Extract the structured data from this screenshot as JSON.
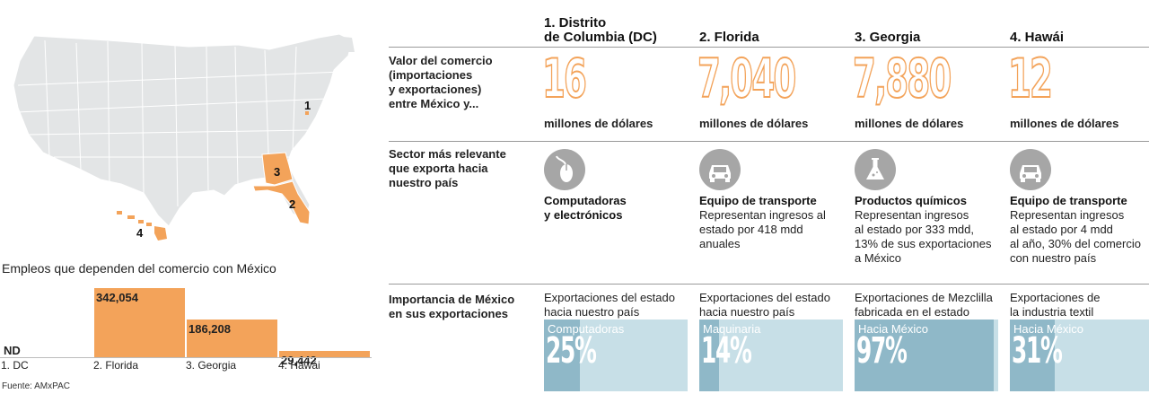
{
  "map": {
    "markers": [
      "1",
      "3",
      "2",
      "4"
    ],
    "highlight_color": "#f3a35a",
    "base_color": "#e3e5e6"
  },
  "chart_data": {
    "type": "bar",
    "title": "Empleos que dependen del comercio con México",
    "categories": [
      "1. DC",
      "2. Florida",
      "3. Georgia",
      "4. Hawái"
    ],
    "values": [
      null,
      342054,
      186208,
      29442
    ],
    "value_labels": [
      "ND",
      "342,054",
      "186,208",
      "29,442"
    ],
    "ylim": [
      0,
      342054
    ],
    "color": "#f3a35a"
  },
  "source": "Fuente: AMxPAC",
  "table": {
    "columns": [
      "1. Distrito\nde Columbia (DC)",
      "2. Florida",
      "3. Georgia",
      "4. Hawái"
    ],
    "row_labels": {
      "trade": "Valor del comercio\n(importaciones\ny exportaciones)\nentre México y...",
      "sector": "Sector más relevante\nque exporta hacia\nnuestro país",
      "importance": "Importancia de México\nen sus exportaciones"
    },
    "trade_values": [
      "16",
      "7,040",
      "7,880",
      "12"
    ],
    "trade_unit": "millones de dólares",
    "sectors": [
      {
        "icon": "mouse-icon",
        "title": "Computadoras\ny electrónicos",
        "desc": ""
      },
      {
        "icon": "car-icon",
        "title": "Equipo de transporte",
        "desc": "Representan ingresos al\nestado por 418 mdd\nanuales"
      },
      {
        "icon": "flask-icon",
        "title": "Productos químicos",
        "desc": "Representan ingresos\nal estado por 333 mdd,\n13% de sus exportaciones\na México"
      },
      {
        "icon": "car-icon",
        "title": "Equipo de transporte",
        "desc": "Representan ingresos\nal estado por  4 mdd\nal año, 30% del comercio\ncon nuestro país"
      }
    ],
    "importance": [
      {
        "text": "Exportaciones del estado\nhacia nuestro país",
        "label": "Computadoras",
        "pct_label": "25%",
        "pct": 25
      },
      {
        "text": "Exportaciones del estado\nhacia nuestro país",
        "label": "Maquinaria",
        "pct_label": "14%",
        "pct": 14
      },
      {
        "text": "Exportaciones de Mezclilla\nfabricada en el estado",
        "label": "Hacia México",
        "pct_label": "97%",
        "pct": 97
      },
      {
        "text": "Exportaciones de\nla industria textil",
        "label": "Hacia México",
        "pct_label": "31%",
        "pct": 31
      }
    ],
    "colors": {
      "orange": "#f3a35a",
      "box_light": "#c7dfe7",
      "box_dark": "#8fb8c8",
      "icon_bg": "#a6a6a6"
    }
  }
}
